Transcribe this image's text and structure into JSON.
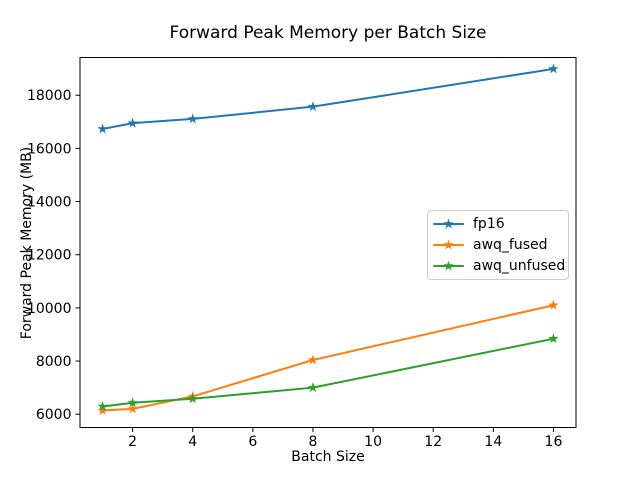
{
  "chart_data": {
    "type": "line",
    "title": "Forward Peak Memory per Batch Size",
    "xlabel": "Batch Size",
    "ylabel": "Forward Peak Memory (MB)",
    "x": [
      1,
      2,
      4,
      8,
      16
    ],
    "series": [
      {
        "name": "fp16",
        "color": "#1f77b4",
        "values": [
          16730,
          16950,
          17110,
          17570,
          18990
        ]
      },
      {
        "name": "awq_fused",
        "color": "#ff7f0e",
        "values": [
          6140,
          6200,
          6670,
          8040,
          10100
        ]
      },
      {
        "name": "awq_unfused",
        "color": "#2ca02c",
        "values": [
          6290,
          6430,
          6580,
          7000,
          8840
        ]
      }
    ],
    "xticks": [
      2,
      4,
      6,
      8,
      10,
      12,
      14,
      16
    ],
    "yticks": [
      6000,
      8000,
      10000,
      12000,
      14000,
      16000,
      18000
    ],
    "xlim": [
      0.25,
      16.75
    ],
    "ylim": [
      5500,
      19420
    ],
    "marker": "star",
    "grid": false,
    "legend_position": "center-right"
  },
  "style": {
    "axis_color": "#000000",
    "text_color": "#000000",
    "background": "#ffffff",
    "legend_border": "#cccccc"
  }
}
